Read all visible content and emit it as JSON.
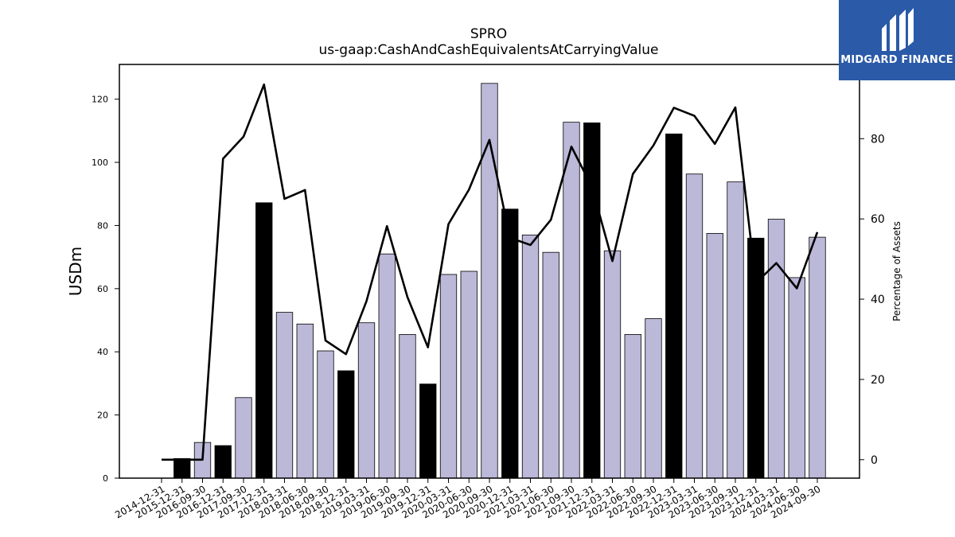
{
  "chart_data": {
    "type": "bar",
    "title": "SPRO",
    "subtitle": "us-gaap:CashAndCashEquivalentsAtCarryingValue",
    "ylabel": "USDm",
    "y2label": "Percentage of Assets",
    "ylim": [
      0,
      131
    ],
    "y2lim": [
      -4.6,
      98.5
    ],
    "yticks": [
      0,
      20,
      40,
      60,
      80,
      100,
      120
    ],
    "y2ticks": [
      0,
      20,
      40,
      60,
      80
    ],
    "categories": [
      "2014-12-31",
      "2015-12-31",
      "2016-09-30",
      "2016-12-31",
      "2017-09-30",
      "2017-12-31",
      "2018-03-31",
      "2018-06-30",
      "2018-09-30",
      "2018-12-31",
      "2019-03-31",
      "2019-06-30",
      "2019-09-30",
      "2019-12-31",
      "2020-03-31",
      "2020-06-30",
      "2020-09-30",
      "2020-12-31",
      "2021-03-31",
      "2021-06-30",
      "2021-09-30",
      "2021-12-31",
      "2022-03-31",
      "2022-06-30",
      "2022-09-30",
      "2022-12-31",
      "2023-03-31",
      "2023-06-30",
      "2023-09-30",
      "2023-12-31",
      "2024-03-31",
      "2024-06-30",
      "2024-09-30"
    ],
    "series": [
      {
        "kind": "bar",
        "values": [
          0,
          6.2,
          11.3,
          10.3,
          25.5,
          87.2,
          52.5,
          48.8,
          40.3,
          34.0,
          49.2,
          71.0,
          45.5,
          29.8,
          64.5,
          65.5,
          125.0,
          85.2,
          77.0,
          71.5,
          112.7,
          112.5,
          72.0,
          45.5,
          50.5,
          109.0,
          96.3,
          77.5,
          93.8,
          76.0,
          82.0,
          63.5,
          76.3
        ],
        "year_end": [
          true,
          true,
          false,
          true,
          false,
          true,
          false,
          false,
          false,
          true,
          false,
          false,
          false,
          true,
          false,
          false,
          false,
          true,
          false,
          false,
          false,
          true,
          false,
          false,
          false,
          true,
          false,
          false,
          false,
          true,
          false,
          false,
          false
        ]
      },
      {
        "kind": "line",
        "axis": "right",
        "values": [
          0,
          0,
          0,
          75.0,
          80.5,
          93.5,
          65.0,
          67.2,
          29.7,
          26.3,
          39.5,
          58.2,
          40.5,
          28.0,
          58.7,
          67.3,
          79.7,
          55.3,
          53.5,
          59.8,
          78.0,
          68.0,
          49.5,
          71.2,
          78.3,
          87.7,
          85.7,
          78.7,
          87.8,
          44.0,
          49.0,
          42.7,
          56.7
        ]
      }
    ],
    "colors": {
      "bar_regular": "#bcb8d8",
      "bar_year_end": "#000000",
      "line": "#000000"
    },
    "grid": false
  },
  "logo": {
    "text": "MIDGARD FINANCE",
    "bg": "#2a5aa8"
  }
}
